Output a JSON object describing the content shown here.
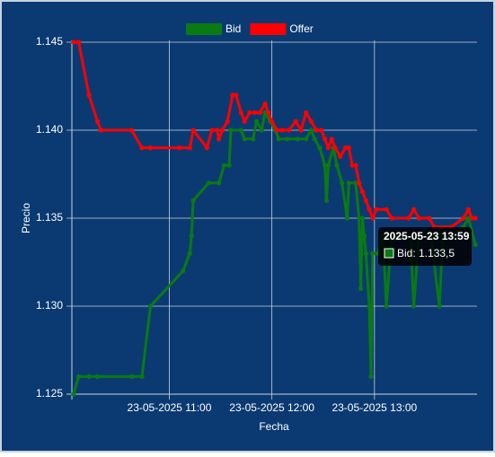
{
  "chart_data": {
    "type": "line",
    "xlabel": "Fecha",
    "ylabel": "Precio",
    "xlim": [
      "23-05-2025 10:03",
      "23-05-2025 14:00"
    ],
    "xticks": [
      "23-05-2025 11:00",
      "23-05-2025 12:00",
      "23-05-2025 13:00"
    ],
    "ylim": [
      1125,
      1145
    ],
    "yticks": [
      {
        "value": 1125,
        "label": "1.125"
      },
      {
        "value": 1130,
        "label": "1.130"
      },
      {
        "value": 1135,
        "label": "1.135"
      },
      {
        "value": 1140,
        "label": "1.140"
      },
      {
        "value": 1145,
        "label": "1.145"
      }
    ],
    "grid": true,
    "legend": "top",
    "series": [
      {
        "name": "Bid",
        "color": "#0a7a12",
        "x": [
          "23-05-2025 10:04",
          "23-05-2025 10:07",
          "23-05-2025 10:13",
          "23-05-2025 10:18",
          "23-05-2025 10:38",
          "23-05-2025 10:44",
          "23-05-2025 10:49",
          "23-05-2025 11:08",
          "23-05-2025 11:12",
          "23-05-2025 11:13",
          "23-05-2025 11:14",
          "23-05-2025 11:23",
          "23-05-2025 11:29",
          "23-05-2025 11:32",
          "23-05-2025 11:35",
          "23-05-2025 11:36",
          "23-05-2025 11:42",
          "23-05-2025 11:44",
          "23-05-2025 11:49",
          "23-05-2025 11:51",
          "23-05-2025 11:54",
          "23-05-2025 11:56",
          "23-05-2025 11:59",
          "23-05-2025 12:02",
          "23-05-2025 12:04",
          "23-05-2025 12:09",
          "23-05-2025 12:15",
          "23-05-2025 12:20",
          "23-05-2025 12:23",
          "23-05-2025 12:25",
          "23-05-2025 12:28",
          "23-05-2025 12:31",
          "23-05-2025 12:32",
          "23-05-2025 12:33",
          "23-05-2025 12:36",
          "23-05-2025 12:38",
          "23-05-2025 12:41",
          "23-05-2025 12:44",
          "23-05-2025 12:45",
          "23-05-2025 12:49",
          "23-05-2025 12:51",
          "23-05-2025 12:52",
          "23-05-2025 12:53",
          "23-05-2025 12:54",
          "23-05-2025 12:55",
          "23-05-2025 12:57",
          "23-05-2025 12:58",
          "23-05-2025 12:59",
          "23-05-2025 13:02",
          "23-05-2025 13:05",
          "23-05-2025 13:07",
          "23-05-2025 13:10",
          "23-05-2025 13:15",
          "23-05-2025 13:21",
          "23-05-2025 13:23",
          "23-05-2025 13:26",
          "23-05-2025 13:33",
          "23-05-2025 13:38",
          "23-05-2025 13:40",
          "23-05-2025 13:47",
          "23-05-2025 13:52",
          "23-05-2025 13:55",
          "23-05-2025 13:59"
        ],
        "values": [
          1125,
          1126,
          1126,
          1126,
          1126,
          1126,
          1130,
          1132,
          1133,
          1134,
          1136,
          1137,
          1137,
          1138,
          1138,
          1140,
          1140,
          1139.5,
          1139.5,
          1140.5,
          1140,
          1141,
          1140.5,
          1140,
          1139.5,
          1139.5,
          1139.5,
          1139.5,
          1140,
          1139.5,
          1139,
          1138,
          1136,
          1138,
          1139,
          1138,
          1137,
          1135,
          1137,
          1137,
          1135,
          1131,
          1135,
          1134,
          1133,
          1130,
          1126,
          1133,
          1133,
          1134,
          1130,
          1134,
          1134,
          1134,
          1130,
          1134,
          1134,
          1130,
          1134,
          1134,
          1134.5,
          1135,
          1133.5
        ]
      },
      {
        "name": "Offer",
        "color": "#ff0000",
        "x": [
          "23-05-2025 10:04",
          "23-05-2025 10:07",
          "23-05-2025 10:13",
          "23-05-2025 10:18",
          "23-05-2025 10:20",
          "23-05-2025 10:38",
          "23-05-2025 10:44",
          "23-05-2025 10:49",
          "23-05-2025 11:06",
          "23-05-2025 11:12",
          "23-05-2025 11:14",
          "23-05-2025 11:22",
          "23-05-2025 11:25",
          "23-05-2025 11:28",
          "23-05-2025 11:29",
          "23-05-2025 11:31",
          "23-05-2025 11:34",
          "23-05-2025 11:37",
          "23-05-2025 11:39",
          "23-05-2025 11:42",
          "23-05-2025 11:44",
          "23-05-2025 11:47",
          "23-05-2025 11:50",
          "23-05-2025 11:53",
          "23-05-2025 11:56",
          "23-05-2025 11:58",
          "23-05-2025 12:00",
          "23-05-2025 12:03",
          "23-05-2025 12:06",
          "23-05-2025 12:10",
          "23-05-2025 12:14",
          "23-05-2025 12:17",
          "23-05-2025 12:20",
          "23-05-2025 12:23",
          "23-05-2025 12:26",
          "23-05-2025 12:29",
          "23-05-2025 12:31",
          "23-05-2025 12:33",
          "23-05-2025 12:35",
          "23-05-2025 12:37",
          "23-05-2025 12:40",
          "23-05-2025 12:43",
          "23-05-2025 12:45",
          "23-05-2025 12:47",
          "23-05-2025 12:49",
          "23-05-2025 12:51",
          "23-05-2025 12:53",
          "23-05-2025 12:55",
          "23-05-2025 12:57",
          "23-05-2025 12:59",
          "23-05-2025 13:01",
          "23-05-2025 13:07",
          "23-05-2025 13:10",
          "23-05-2025 13:20",
          "23-05-2025 13:23",
          "23-05-2025 13:26",
          "23-05-2025 13:32",
          "23-05-2025 13:35",
          "23-05-2025 13:45",
          "23-05-2025 13:52",
          "23-05-2025 13:55",
          "23-05-2025 13:57",
          "23-05-2025 13:59"
        ],
        "values": [
          1145,
          1145,
          1142,
          1140.5,
          1140,
          1140,
          1139,
          1139,
          1139,
          1139,
          1140,
          1139,
          1140,
          1140,
          1139.5,
          1140,
          1140.5,
          1142,
          1142,
          1141,
          1140.5,
          1141,
          1141,
          1141,
          1141.5,
          1141,
          1140.5,
          1140,
          1140,
          1140,
          1140.5,
          1140,
          1141,
          1140.5,
          1140,
          1140,
          1139.5,
          1139,
          1139.5,
          1139,
          1138.5,
          1139,
          1139,
          1138,
          1138,
          1137,
          1136.5,
          1136,
          1135.5,
          1135,
          1135.5,
          1135.5,
          1135,
          1135,
          1135.5,
          1135,
          1135,
          1134.5,
          1134.5,
          1135,
          1135.5,
          1135,
          1135
        ]
      }
    ],
    "tooltip": {
      "title": "2025-05-23 13:59",
      "text": "Bid: 1.133,5"
    }
  }
}
